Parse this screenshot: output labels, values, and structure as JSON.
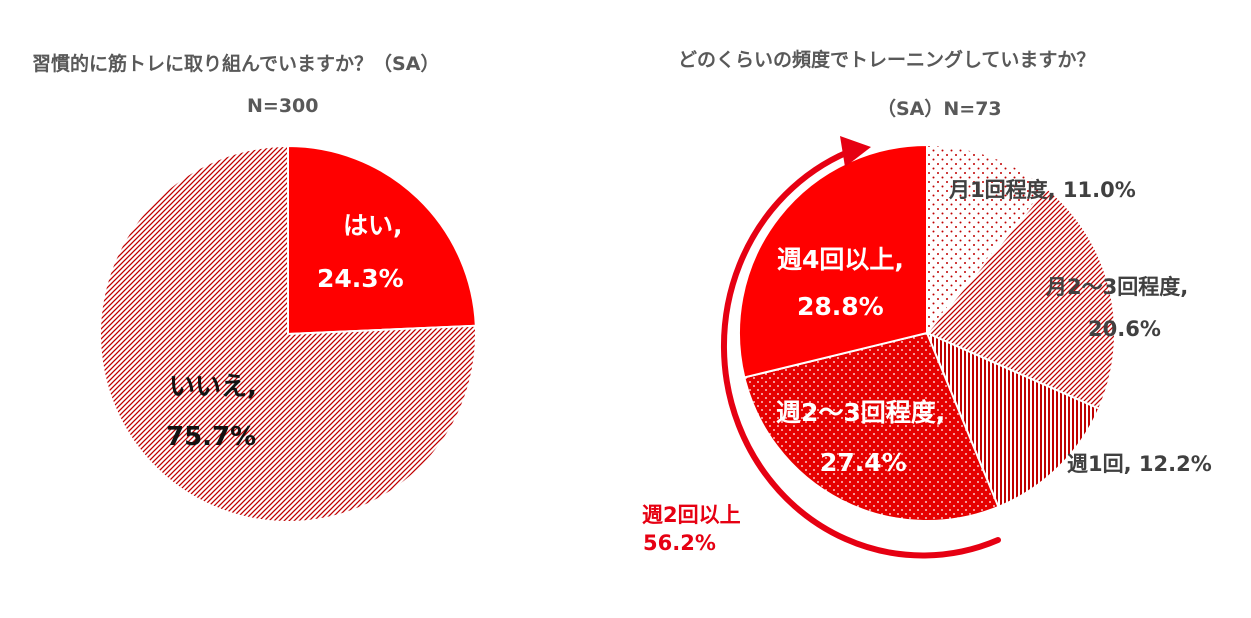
{
  "colors": {
    "red": "#ff0000",
    "dark_red": "#c00000",
    "title_gray": "#595959",
    "label_gray": "#404040",
    "annotation_red": "#e60012"
  },
  "chart_data": [
    {
      "type": "pie",
      "title": "習慣的に筋トレに取り組んでいますか？（SA）",
      "subtitle": "N=300",
      "slices": [
        {
          "label": "はい,",
          "value": 24.3,
          "value_text": "24.3%",
          "fill": "solid"
        },
        {
          "label": "いいえ,",
          "value": 75.7,
          "value_text": "75.7%",
          "fill": "diagonal-hatch"
        }
      ]
    },
    {
      "type": "pie",
      "title": "どのくらいの頻度でトレーニングしていますか？",
      "subtitle": "（SA）N=73",
      "slices": [
        {
          "label": "月1回程度,",
          "value": 11.0,
          "value_text": "11.0%",
          "fill": "sparse-dots"
        },
        {
          "label": "月2～3回程度,",
          "value": 20.6,
          "value_text": "20.6%",
          "fill": "diagonal-hatch"
        },
        {
          "label": "週1回,",
          "value": 12.2,
          "value_text": "12.2%",
          "fill": "vertical-lines"
        },
        {
          "label": "週2～3回程度,",
          "value": 27.4,
          "value_text": "27.4%",
          "fill": "dense-dots"
        },
        {
          "label": "週4回以上,",
          "value": 28.8,
          "value_text": "28.8%",
          "fill": "solid"
        }
      ],
      "annotation": {
        "label": "週2回以上",
        "value_text": "56.2%"
      }
    }
  ]
}
